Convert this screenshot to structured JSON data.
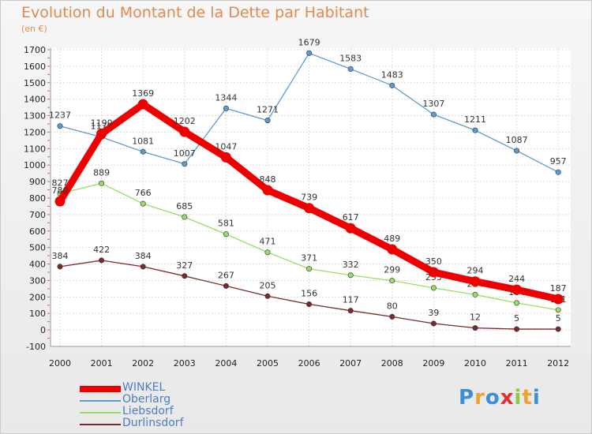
{
  "chart_data": {
    "type": "line",
    "title": "Evolution du Montant de la Dette par Habitant",
    "subtitle": "(en €)",
    "categories": [
      "2000",
      "2001",
      "2002",
      "2003",
      "2004",
      "2005",
      "2006",
      "2007",
      "2008",
      "2009",
      "2010",
      "2011",
      "2012"
    ],
    "ylim": [
      -100,
      1700
    ],
    "yticks": [
      -100,
      0,
      100,
      200,
      300,
      400,
      500,
      600,
      700,
      800,
      900,
      1000,
      1100,
      1200,
      1300,
      1400,
      1500,
      1600,
      1700
    ],
    "grid": true,
    "legend_position": "bottom-left",
    "series": [
      {
        "name": "WINKEL",
        "color": "#ee0000",
        "values": [
          780,
          1190,
          1369,
          1202,
          1047,
          848,
          739,
          617,
          489,
          350,
          294,
          244,
          187
        ],
        "labels": [
          "780",
          "1190",
          "1369",
          "1202",
          "1047",
          "848",
          "739",
          "617",
          "489",
          "350",
          "294",
          "244",
          "187"
        ]
      },
      {
        "name": "Oberlarg",
        "color": "#5b9bd5",
        "values": [
          1237,
          1170,
          1081,
          1007,
          1344,
          1271,
          1679,
          1583,
          1483,
          1307,
          1211,
          1087,
          957
        ],
        "labels": [
          "1237",
          "1170",
          "1081",
          "1007",
          "1344",
          "1271",
          "1679",
          "1583",
          "1483",
          "1307",
          "1211",
          "1087",
          "957"
        ]
      },
      {
        "name": "Liebsdorf",
        "color": "#99dd66",
        "values": [
          827,
          889,
          766,
          685,
          581,
          471,
          371,
          332,
          299,
          255,
          214,
          164,
          121
        ],
        "labels": [
          "827",
          "889",
          "766",
          "685",
          "581",
          "471",
          "371",
          "332",
          "299",
          "255",
          "214",
          "164",
          "121"
        ]
      },
      {
        "name": "Durlinsdorf",
        "color": "#7a2a2a",
        "values": [
          384,
          422,
          384,
          327,
          267,
          205,
          156,
          117,
          80,
          39,
          12,
          5,
          5
        ],
        "labels": [
          "384",
          "422",
          "384",
          "327",
          "267",
          "205",
          "156",
          "117",
          "80",
          "39",
          "12",
          "5",
          "5"
        ]
      }
    ]
  },
  "logo": {
    "text": "Proxiti"
  }
}
